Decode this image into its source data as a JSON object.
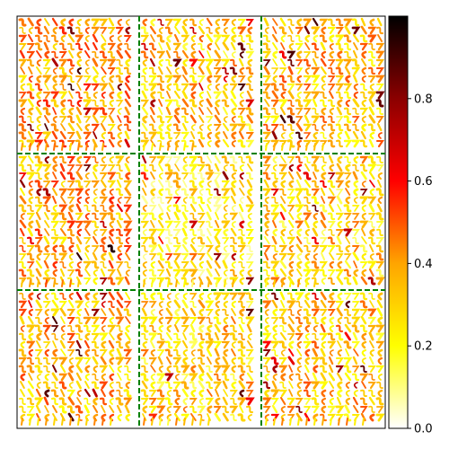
{
  "chart_data": {
    "type": "heatmap",
    "title": "",
    "xlabel": "",
    "ylabel": "",
    "grid_rows": 3,
    "grid_cols": 3,
    "panel_content": "handwritten digit glyphs tiled in a dense grid",
    "panel_divider_color": "#008000",
    "panel_divider_style": "dashed",
    "axis_ticks": "none",
    "colormap": "hot_r",
    "colormap_stops": [
      "#ffffff",
      "#ffff00",
      "#ffa500",
      "#ff0000",
      "#8b0000",
      "#000000"
    ],
    "colorbar": {
      "location": "right",
      "vmin": 0.0,
      "vmax": 1.0,
      "ticks": [
        0.0,
        0.2,
        0.4,
        0.6,
        0.8
      ],
      "tick_labels": [
        "0.0",
        "0.2",
        "0.4",
        "0.6",
        "0.8"
      ]
    },
    "panel_mean_intensity": [
      [
        0.4,
        0.32,
        0.34
      ],
      [
        0.38,
        0.24,
        0.3
      ],
      [
        0.36,
        0.3,
        0.33
      ]
    ]
  }
}
